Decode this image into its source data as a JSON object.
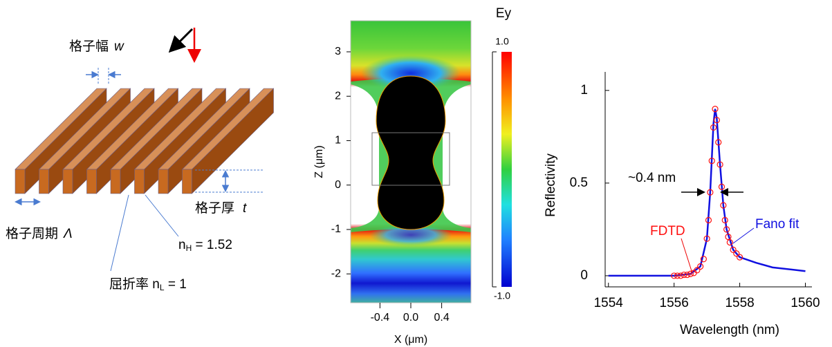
{
  "diagram": {
    "width_label": "格子幅",
    "width_symbol": "w",
    "thickness_label": "格子厚",
    "thickness_symbol": "t",
    "period_label": "格子周期",
    "period_symbol": "Λ",
    "n_high": {
      "base": "n",
      "sub": "H",
      "rest": " = 1.52"
    },
    "n_low": {
      "prefix": "屈折率 ",
      "base": "n",
      "sub": "L",
      "rest": " = 1"
    }
  },
  "field_map": {
    "title": "Ey",
    "x_label": "X (μm)",
    "y_label": "Z (μm)",
    "xlim": [
      -0.78,
      0.78
    ],
    "ylim": [
      -2.65,
      3.7
    ],
    "xticks": [
      -0.4,
      {
        "value": 0,
        "label": "0.0"
      },
      0.4
    ],
    "yticks": [
      -2,
      -1,
      0,
      1,
      2,
      3
    ],
    "colorbar": {
      "lim": [
        -1,
        1
      ],
      "ticks": [
        {
          "value": -1,
          "label": "-1.0"
        },
        {
          "value": 1,
          "label": "1.0"
        }
      ]
    }
  },
  "chart_data": {
    "type": "line",
    "x_label": "Wavelength (nm)",
    "y_label": "Reflectivity",
    "xlim": [
      1553.9,
      1560.2
    ],
    "ylim": [
      -0.06,
      1.1
    ],
    "xticks": [
      1554,
      1556,
      1558,
      1560
    ],
    "yticks": [
      0,
      0.5,
      1
    ],
    "annotations": [
      "~0.4 nm"
    ],
    "series": [
      {
        "name": "Fano fit",
        "color": "#1010e0",
        "style": "line",
        "x": [
          1554,
          1555,
          1556,
          1556.5,
          1556.8,
          1557.0,
          1557.1,
          1557.2,
          1557.25,
          1557.3,
          1557.4,
          1557.5,
          1557.6,
          1557.8,
          1558,
          1558.5,
          1559,
          1560
        ],
        "values": [
          0,
          0,
          0,
          0.01,
          0.05,
          0.2,
          0.45,
          0.82,
          0.9,
          0.85,
          0.6,
          0.38,
          0.25,
          0.14,
          0.1,
          0.07,
          0.045,
          0.025
        ]
      },
      {
        "name": "FDTD",
        "color": "#ff1010",
        "style": "markers",
        "x": [
          1556.0,
          1556.1,
          1556.2,
          1556.3,
          1556.4,
          1556.5,
          1556.6,
          1556.7,
          1556.8,
          1556.9,
          1557.0,
          1557.05,
          1557.1,
          1557.15,
          1557.2,
          1557.25,
          1557.3,
          1557.35,
          1557.4,
          1557.45,
          1557.5,
          1557.55,
          1557.6,
          1557.65,
          1557.7,
          1557.8,
          1557.9,
          1558.0
        ],
        "values": [
          0,
          0,
          0,
          0.005,
          0.005,
          0.01,
          0.015,
          0.03,
          0.05,
          0.09,
          0.2,
          0.3,
          0.45,
          0.62,
          0.8,
          0.9,
          0.84,
          0.72,
          0.6,
          0.48,
          0.38,
          0.3,
          0.25,
          0.21,
          0.18,
          0.14,
          0.12,
          0.1
        ]
      }
    ]
  }
}
